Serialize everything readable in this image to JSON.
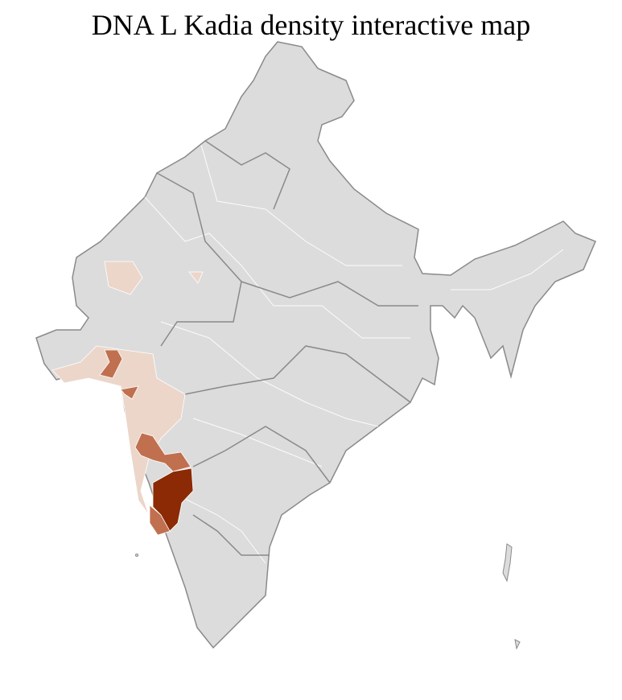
{
  "title": "DNA L Kadia density interactive map",
  "colors": {
    "no_data": "#dcdcdc",
    "border": "#8a8a8a",
    "district_line": "#ffffff",
    "low": "#ecd6ca",
    "medium": "#c0704f",
    "high": "#8b2a04"
  },
  "density_levels": [
    "none",
    "low",
    "medium",
    "high"
  ]
}
